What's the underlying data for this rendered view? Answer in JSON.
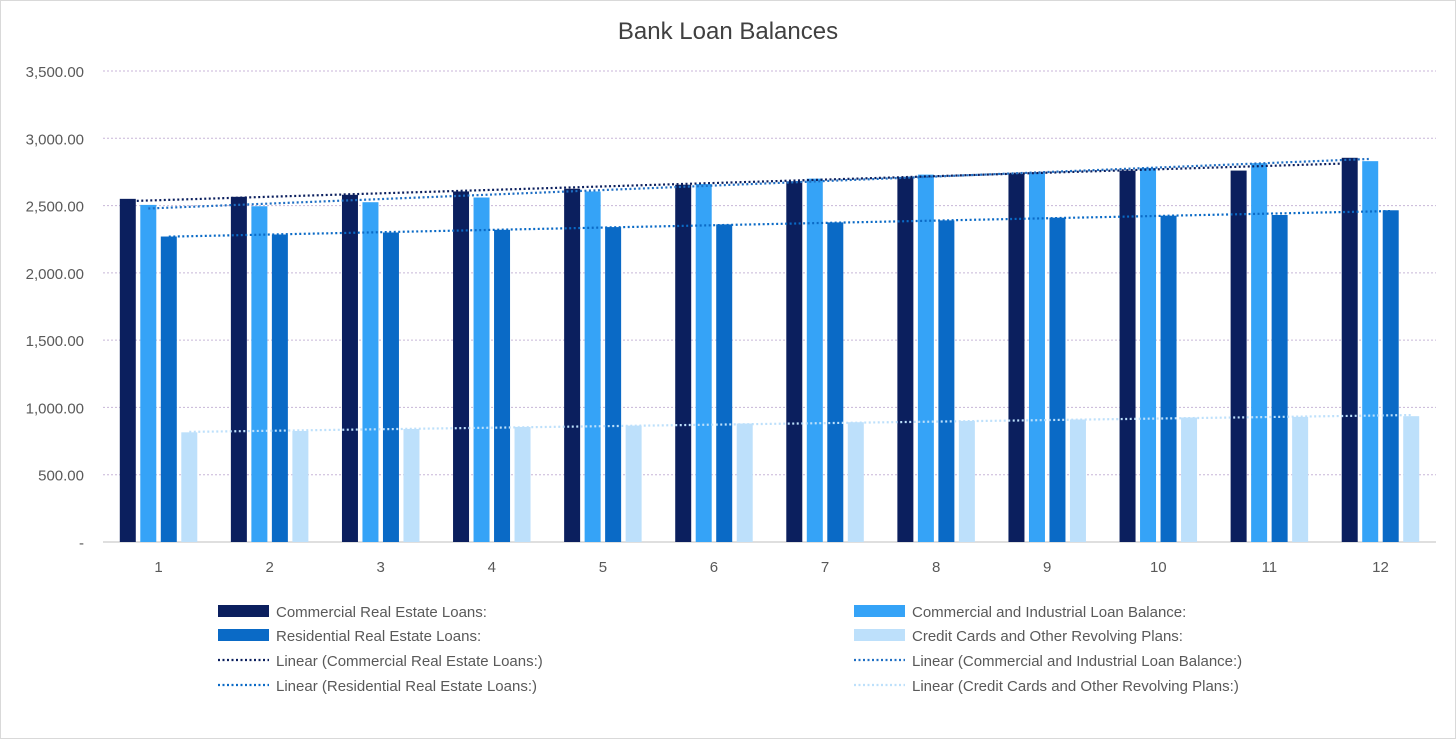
{
  "chart_data": {
    "type": "bar",
    "title": "Bank Loan Balances",
    "xlabel": "",
    "ylabel": "",
    "categories": [
      "1",
      "2",
      "3",
      "4",
      "5",
      "6",
      "7",
      "8",
      "9",
      "10",
      "11",
      "12"
    ],
    "ylim": [
      0,
      3500
    ],
    "yticks": [
      0,
      500,
      1000,
      1500,
      2000,
      2500,
      3000,
      3500
    ],
    "ytick_labels": [
      "-",
      "500.00",
      "1,000.00",
      "1,500.00",
      "2,000.00",
      "2,500.00",
      "3,000.00",
      "3,500.00"
    ],
    "grid": true,
    "legend_position": "bottom",
    "series": [
      {
        "name": "Commercial Real Estate Loans:",
        "color": "#0b1f5e",
        "values": [
          2550,
          2565,
          2580,
          2605,
          2625,
          2655,
          2680,
          2710,
          2735,
          2760,
          2760,
          2855
        ]
      },
      {
        "name": "Commercial and Industrial Loan Balance:",
        "color": "#35a3f7",
        "values": [
          2505,
          2495,
          2525,
          2560,
          2605,
          2660,
          2700,
          2730,
          2745,
          2780,
          2815,
          2830
        ]
      },
      {
        "name": "Residential Real Estate Loans:",
        "color": "#0a6ac6",
        "values": [
          2270,
          2285,
          2300,
          2320,
          2340,
          2360,
          2375,
          2390,
          2410,
          2425,
          2430,
          2465
        ]
      },
      {
        "name": "Credit Cards and Other Revolving Plans:",
        "color": "#bde0fb",
        "values": [
          815,
          825,
          840,
          855,
          865,
          880,
          890,
          900,
          910,
          925,
          930,
          935
        ]
      }
    ],
    "trendlines": [
      {
        "name": "Linear (Commercial Real Estate Loans:)",
        "color": "#0b1f5e",
        "type": "linear",
        "series": 0
      },
      {
        "name": "Linear (Commercial and Industrial Loan Balance:)",
        "color": "#1f6fc4",
        "type": "linear",
        "series": 1
      },
      {
        "name": "Linear (Residential Real Estate Loans:)",
        "color": "#0a6ac6",
        "type": "linear",
        "series": 2
      },
      {
        "name": "Linear (Credit Cards and Other Revolving Plans:)",
        "color": "#bde0fb",
        "type": "linear",
        "series": 3
      }
    ]
  }
}
